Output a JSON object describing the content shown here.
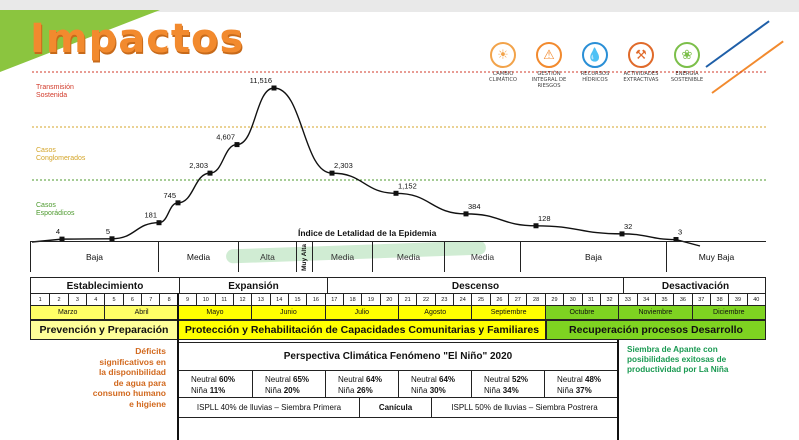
{
  "title": "Impactos",
  "icons": [
    {
      "name": "cambio-climatico-icon",
      "glyph": "☀",
      "color": "#f2a34a",
      "label": "CAMBIO CLIMÁTICO"
    },
    {
      "name": "gestion-riesgos-icon",
      "glyph": "⚠",
      "color": "#f28a2e",
      "label": "GESTIÓN INTEGRAL DE RIESGOS"
    },
    {
      "name": "recursos-hidricos-icon",
      "glyph": "💧",
      "color": "#2a8fd6",
      "label": "RECURSOS HÍDRICOS"
    },
    {
      "name": "actividades-extractivas-icon",
      "glyph": "⚒",
      "color": "#e06a2a",
      "label": "ACTIVIDADES EXTRACTIVAS"
    },
    {
      "name": "energia-sostenible-icon",
      "glyph": "❀",
      "color": "#7cbf4a",
      "label": "ENERGÍA SOSTENIBLE"
    }
  ],
  "zones": {
    "transmision": "Transmisión Sostenida",
    "conglomerados": "Casos Conglomerados",
    "esporadicos": "Casos Esporádicos"
  },
  "chart_data": {
    "type": "line",
    "points": [
      {
        "label": "4",
        "value": 4
      },
      {
        "label": "5",
        "value": 5
      },
      {
        "label": "181",
        "value": 181
      },
      {
        "label": "745",
        "value": 745
      },
      {
        "label": "2,303",
        "value": 2303
      },
      {
        "label": "4,607",
        "value": 4607
      },
      {
        "label": "11,516",
        "value": 11516
      },
      {
        "label": "2,303",
        "value": 2303
      },
      {
        "label": "1,152",
        "value": 1152
      },
      {
        "label": "384",
        "value": 384
      },
      {
        "label": "128",
        "value": 128
      },
      {
        "label": "32",
        "value": 32
      },
      {
        "label": "3",
        "value": 3
      }
    ],
    "color": "#111111",
    "xlabel": "Índice de Letalidad de la Epidemia"
  },
  "letalidad": [
    "Baja",
    "Media",
    "Alta",
    "Muy Alta",
    "Media",
    "Media",
    "Media",
    "Baja",
    "Muy Baja"
  ],
  "phases": [
    "Establecimiento",
    "Expansión",
    "Descenso",
    "Desactivación"
  ],
  "weeks": [
    "1",
    "2",
    "3",
    "4",
    "5",
    "6",
    "7",
    "8",
    "9",
    "10",
    "11",
    "12",
    "13",
    "14",
    "15",
    "16",
    "17",
    "18",
    "19",
    "20",
    "21",
    "22",
    "23",
    "24",
    "25",
    "26",
    "27",
    "28",
    "29",
    "30",
    "31",
    "32",
    "33",
    "34",
    "35",
    "36",
    "37",
    "38",
    "39",
    "40"
  ],
  "months": [
    "Marzo",
    "Abril",
    "Mayo",
    "Junio",
    "Julio",
    "Agosto",
    "Septiembre",
    "Octubre",
    "Noviembre",
    "Diciembre"
  ],
  "bands": [
    "Prevención y Preparación",
    "Protección y Rehabilitación de Capacidades Comunitarias y Familiares",
    "Recuperación procesos Desarrollo"
  ],
  "deficit_text": "Déficits significativos en la disponibilidad de agua para consumo humano e higiene",
  "nina_text": "Siembra de Apante con posibilidades exitosas de productividad por La Niña",
  "perspectiva_title": "Perspectiva Climática Fenómeno \"El Niño\" 2020",
  "enso": [
    {
      "neutral_label": "Neutral",
      "neutral": "60%",
      "nina_label": "Niña",
      "nina": "11%"
    },
    {
      "neutral_label": "Neutral",
      "neutral": "65%",
      "nina_label": "Niña",
      "nina": "20%"
    },
    {
      "neutral_label": "Neutral",
      "neutral": "64%",
      "nina_label": "Niña",
      "nina": "26%"
    },
    {
      "neutral_label": "Neutral",
      "neutral": "64%",
      "nina_label": "Niña",
      "nina": "30%"
    },
    {
      "neutral_label": "Neutral",
      "neutral": "52%",
      "nina_label": "Niña",
      "nina": "34%"
    },
    {
      "neutral_label": "Neutral",
      "neutral": "48%",
      "nina_label": "Niña",
      "nina": "37%"
    }
  ],
  "ispll": [
    "ISPLL 40% de lluvias – Siembra Primera",
    "Canícula",
    "ISPLL 50% de lluvias – Siembra Postrera"
  ]
}
